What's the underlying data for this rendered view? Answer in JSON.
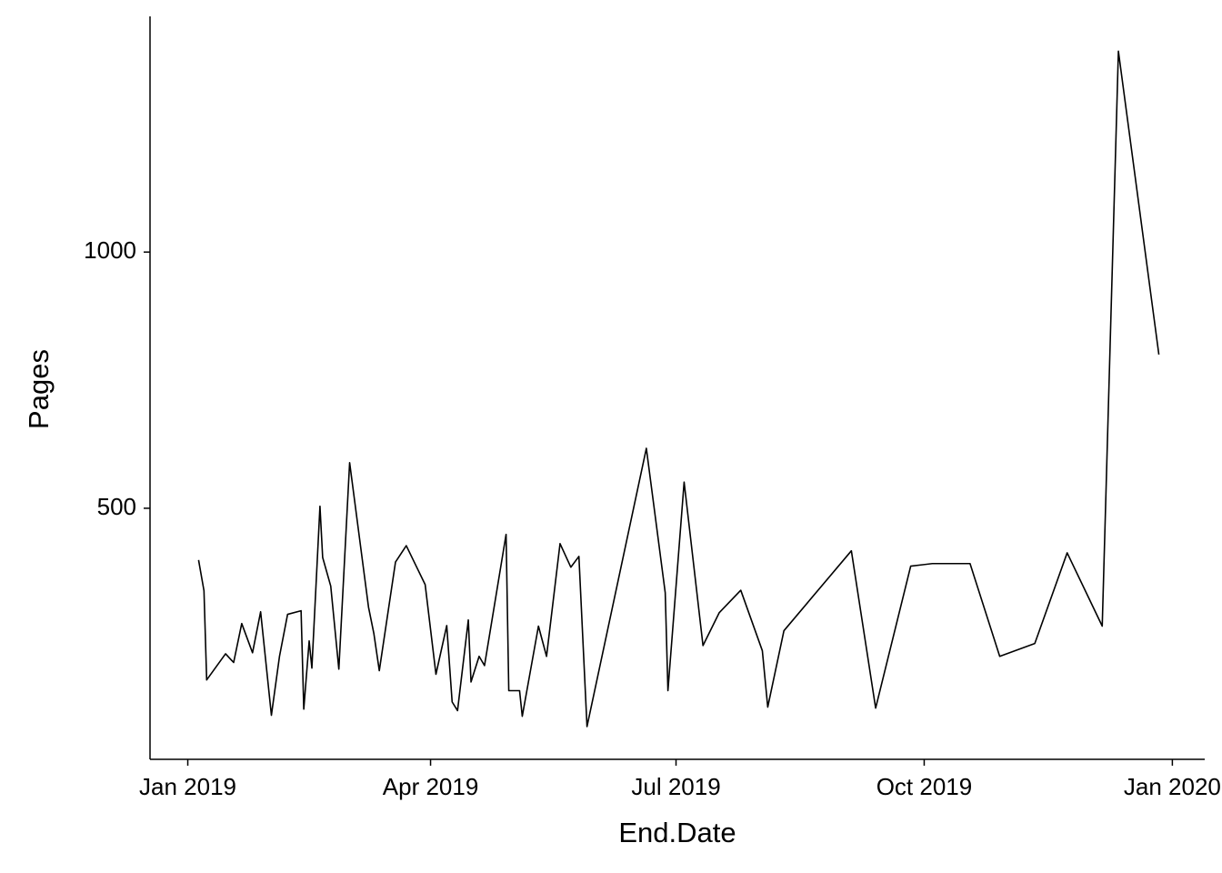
{
  "chart_data": {
    "type": "line",
    "x_label": "End.Date",
    "y_label": "Pages",
    "color": "#000000",
    "x": [
      "2019-01-05",
      "2019-01-07",
      "2019-01-08",
      "2019-01-15",
      "2019-01-18",
      "2019-01-21",
      "2019-01-25",
      "2019-01-28",
      "2019-02-01",
      "2019-02-04",
      "2019-02-07",
      "2019-02-12",
      "2019-02-13",
      "2019-02-15",
      "2019-02-16",
      "2019-02-19",
      "2019-02-20",
      "2019-02-23",
      "2019-02-26",
      "2019-03-02",
      "2019-03-09",
      "2019-03-11",
      "2019-03-13",
      "2019-03-19",
      "2019-03-23",
      "2019-03-30",
      "2019-04-03",
      "2019-04-07",
      "2019-04-09",
      "2019-04-11",
      "2019-04-15",
      "2019-04-16",
      "2019-04-19",
      "2019-04-21",
      "2019-04-29",
      "2019-04-30",
      "2019-05-04",
      "2019-05-05",
      "2019-05-11",
      "2019-05-14",
      "2019-05-19",
      "2019-05-23",
      "2019-05-26",
      "2019-05-29",
      "2019-06-20",
      "2019-06-27",
      "2019-06-28",
      "2019-07-04",
      "2019-07-11",
      "2019-07-17",
      "2019-07-25",
      "2019-08-02",
      "2019-08-04",
      "2019-08-10",
      "2019-09-04",
      "2019-09-13",
      "2019-09-26",
      "2019-10-04",
      "2019-10-18",
      "2019-10-29",
      "2019-11-11",
      "2019-11-23",
      "2019-12-06",
      "2019-12-12",
      "2019-12-27"
    ],
    "values": [
      399,
      339,
      165,
      216,
      199,
      275,
      218,
      298,
      96,
      211,
      293,
      300,
      108,
      241,
      188,
      504,
      404,
      348,
      186,
      589,
      307,
      255,
      183,
      395,
      427,
      351,
      176,
      271,
      122,
      105,
      282,
      161,
      211,
      193,
      449,
      144,
      144,
      94,
      270,
      211,
      431,
      385,
      406,
      74,
      617,
      335,
      144,
      551,
      232,
      296,
      340,
      222,
      112,
      261,
      417,
      110,
      387,
      392,
      392,
      211,
      236,
      413,
      270,
      1392,
      800
    ],
    "xlim": [
      "2018-12-18",
      "2020-01-13"
    ],
    "xticks": [
      {
        "value": "2019-01-01",
        "label": "Jan 2019"
      },
      {
        "value": "2019-04-01",
        "label": "Apr 2019"
      },
      {
        "value": "2019-07-01",
        "label": "Jul 2019"
      },
      {
        "value": "2019-10-01",
        "label": "Oct 2019"
      },
      {
        "value": "2020-01-01",
        "label": "Jan 2020"
      }
    ],
    "ylim": [
      10,
      1460
    ],
    "yticks": [
      500,
      1000
    ]
  }
}
